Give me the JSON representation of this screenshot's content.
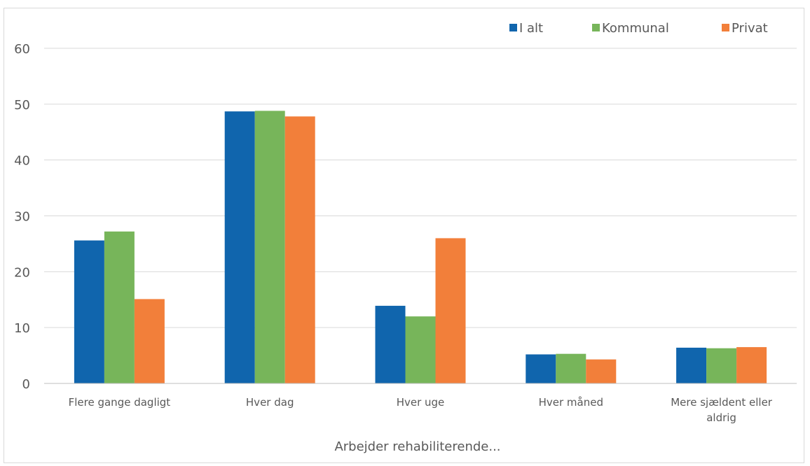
{
  "chart_data": {
    "type": "bar",
    "title": "",
    "xlabel": "Arbejder rehabiliterende...",
    "ylabel": "",
    "ylim": [
      0,
      60
    ],
    "yticks": [
      0,
      10,
      20,
      30,
      40,
      50,
      60
    ],
    "grid": true,
    "legend_position": "top-right",
    "categories": [
      [
        "Flere gange dagligt"
      ],
      [
        "Hver dag"
      ],
      [
        "Hver uge"
      ],
      [
        "Hver måned"
      ],
      [
        "Mere sjældent eller",
        "aldrig"
      ]
    ],
    "series": [
      {
        "name": "I alt",
        "color": "#1065ad",
        "values": [
          25.6,
          48.7,
          13.9,
          5.2,
          6.4
        ]
      },
      {
        "name": "Kommunal",
        "color": "#77b55a",
        "values": [
          27.2,
          48.8,
          12.0,
          5.3,
          6.3
        ]
      },
      {
        "name": "Privat",
        "color": "#f27f3a",
        "values": [
          15.1,
          47.8,
          26.0,
          4.3,
          6.5
        ]
      }
    ]
  }
}
